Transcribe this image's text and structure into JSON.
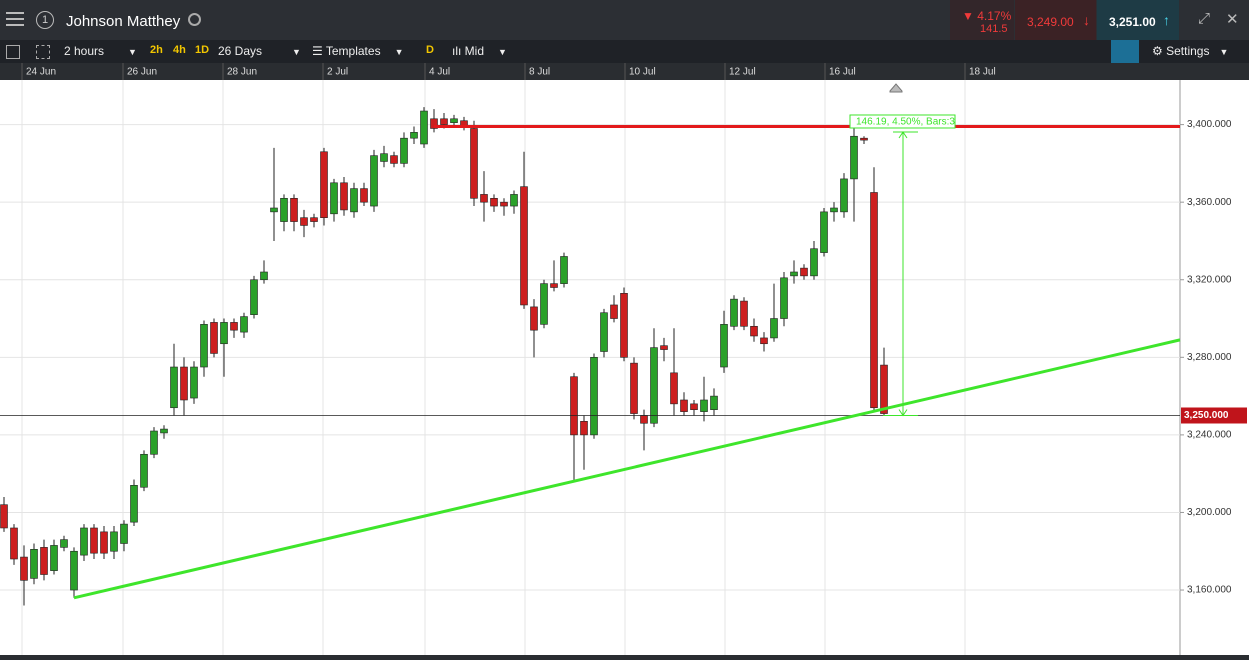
{
  "header": {
    "tab_number": "1",
    "title": "Johnson Matthey",
    "change_pct": "4.17%",
    "change_abs": "141.5",
    "sell": "3,249.00",
    "buy": "3,251.00"
  },
  "toolbar": {
    "interval": "2 hours",
    "quick_2h": "2h",
    "quick_4h": "4h",
    "quick_1d": "1D",
    "range": "26 Days",
    "templates": "Templates",
    "d": "D",
    "price_type": "Mid",
    "settings": "Settings"
  },
  "chart_data": {
    "type": "candlestick",
    "up_color": "#2ba12a",
    "down_color": "#cc1f1f",
    "grid": true,
    "open": [
      3204,
      3192,
      3177,
      3166,
      3182,
      3170,
      3182,
      3160,
      3178,
      3192,
      3190,
      3180,
      3184,
      3195,
      3213,
      3230,
      3241,
      3254,
      3275,
      3259,
      3275,
      3298,
      3287,
      3298,
      3293,
      3302,
      3320,
      3355,
      3350,
      3362,
      3352,
      3352,
      3386,
      3354,
      3370,
      3355,
      3367,
      3358,
      3381,
      3384,
      3380,
      3393,
      3390,
      3403,
      3403,
      3401,
      3402,
      3398,
      3364,
      3362,
      3360,
      3358,
      3368,
      3306,
      3297,
      3318,
      3318,
      3270,
      3247,
      3240,
      3283,
      3307,
      3313,
      3277,
      3250,
      3246,
      3286,
      3272,
      3258,
      3256,
      3252,
      3253,
      3275,
      3296,
      3309,
      3296,
      3290,
      3290,
      3300,
      3322,
      3326,
      3322,
      3334,
      3355,
      3355,
      3372,
      3393,
      3365,
      3276
    ],
    "high": [
      3208,
      3194,
      3183,
      3184,
      3186,
      3186,
      3188,
      3182,
      3194,
      3194,
      3193,
      3193,
      3196,
      3217,
      3232,
      3244,
      3245,
      3287,
      3280,
      3278,
      3299,
      3300,
      3300,
      3300,
      3303,
      3322,
      3330,
      3388,
      3364,
      3364,
      3356,
      3354,
      3388,
      3372,
      3373,
      3370,
      3370,
      3387,
      3389,
      3386,
      3396,
      3399,
      3409,
      3408,
      3406,
      3405,
      3404,
      3402,
      3376,
      3364,
      3362,
      3366,
      3386,
      3310,
      3320,
      3330,
      3334,
      3272,
      3250,
      3282,
      3305,
      3312,
      3316,
      3280,
      3253,
      3295,
      3290,
      3295,
      3262,
      3258,
      3270,
      3264,
      3304,
      3312,
      3311,
      3300,
      3293,
      3318,
      3324,
      3330,
      3328,
      3340,
      3357,
      3360,
      3375,
      3398,
      3394,
      3378,
      3285
    ],
    "low": [
      3190,
      3173,
      3152,
      3163,
      3165,
      3168,
      3180,
      3156,
      3175,
      3176,
      3176,
      3176,
      3180,
      3193,
      3211,
      3228,
      3238,
      3250,
      3250,
      3256,
      3270,
      3280,
      3270,
      3290,
      3290,
      3300,
      3318,
      3340,
      3345,
      3345,
      3342,
      3347,
      3348,
      3350,
      3353,
      3352,
      3358,
      3355,
      3378,
      3378,
      3378,
      3390,
      3388,
      3396,
      3398,
      3399,
      3397,
      3358,
      3350,
      3355,
      3353,
      3354,
      3305,
      3280,
      3295,
      3314,
      3316,
      3216,
      3222,
      3238,
      3280,
      3298,
      3278,
      3248,
      3232,
      3244,
      3278,
      3250,
      3250,
      3250,
      3247,
      3250,
      3272,
      3294,
      3294,
      3288,
      3283,
      3288,
      3296,
      3318,
      3320,
      3320,
      3332,
      3350,
      3352,
      3350,
      3390,
      3252,
      3250
    ],
    "close": [
      3192,
      3176,
      3165,
      3181,
      3168,
      3183,
      3186,
      3180,
      3192,
      3179,
      3179,
      3190,
      3194,
      3214,
      3230,
      3242,
      3243,
      3275,
      3258,
      3275,
      3297,
      3282,
      3298,
      3294,
      3301,
      3320,
      3324,
      3357,
      3362,
      3350,
      3348,
      3350,
      3352,
      3370,
      3356,
      3367,
      3360,
      3384,
      3385,
      3380,
      3393,
      3396,
      3407,
      3398,
      3400,
      3403,
      3399,
      3362,
      3360,
      3358,
      3358,
      3364,
      3307,
      3294,
      3318,
      3316,
      3332,
      3240,
      3240,
      3280,
      3303,
      3300,
      3280,
      3251,
      3246,
      3285,
      3284,
      3256,
      3252,
      3253,
      3258,
      3260,
      3297,
      3310,
      3296,
      3291,
      3287,
      3300,
      3321,
      3324,
      3322,
      3336,
      3355,
      3357,
      3372,
      3394,
      3392,
      3254,
      3251
    ],
    "xlim": [
      -0.4,
      117.6
    ],
    "xticks": [
      {
        "value": 1.8,
        "label": "24 Jun"
      },
      {
        "value": 11.9,
        "label": "26 Jun"
      },
      {
        "value": 21.9,
        "label": "28 Jun"
      },
      {
        "value": 31.9,
        "label": "2 Jul"
      },
      {
        "value": 42.1,
        "label": "4 Jul"
      },
      {
        "value": 52.1,
        "label": "8 Jul"
      },
      {
        "value": 62.1,
        "label": "10 Jul"
      },
      {
        "value": 72.1,
        "label": "12 Jul"
      },
      {
        "value": 82.1,
        "label": "16 Jul"
      },
      {
        "value": 96.1,
        "label": "18 Jul"
      }
    ],
    "ylim": [
      3126.5,
      3423
    ],
    "yticks": [
      {
        "value": 3160,
        "label": "3,160.000"
      },
      {
        "value": 3200,
        "label": "3,200.000"
      },
      {
        "value": 3240,
        "label": "3,240.000"
      },
      {
        "value": 3280,
        "label": "3,280.000"
      },
      {
        "value": 3320,
        "label": "3,320.000"
      },
      {
        "value": 3360,
        "label": "3,360.000"
      },
      {
        "value": 3400,
        "label": "3,400.000"
      }
    ],
    "last_price": 3250,
    "last_price_label": "3,250.000",
    "resistance": {
      "value": 3399,
      "start": 43,
      "color": "#e3191b"
    },
    "trendline": {
      "x": [
        7,
        117.6
      ],
      "y": [
        3156,
        3289
      ],
      "color": "#3ee52b"
    },
    "measure": {
      "x": 89.9,
      "from": 3250,
      "to": 3396.19,
      "label": "146.19, 4.50%, Bars:3",
      "color": "#3ee52b"
    }
  }
}
